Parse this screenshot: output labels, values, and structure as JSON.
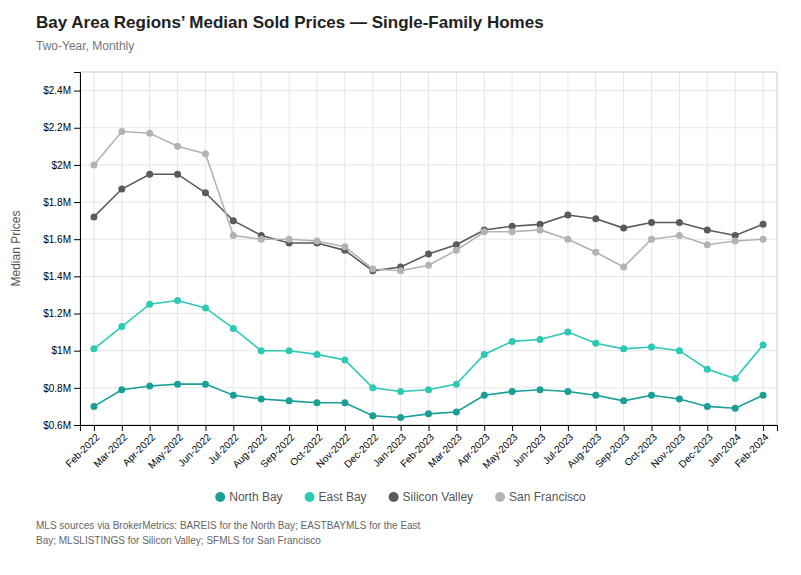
{
  "chart_data": {
    "type": "line",
    "title": "Bay Area Regions’ Median Sold Prices — Single-Family Homes",
    "subtitle": "Two-Year, Monthly",
    "ylabel": "Median Prices",
    "annotations": [
      "MLS sources via BrokerMetrics: BAREIS for the North Bay; EASTBAYMLS for the East",
      "Bay; MLSLISTINGS for Silicon Valley; SFMLS for San Francisco"
    ],
    "categories": [
      "Feb-2022",
      "Mar-2022",
      "Apr-2022",
      "May-2022",
      "Jun-2022",
      "Jul-2022",
      "Aug-2022",
      "Sep-2022",
      "Oct-2022",
      "Nov-2022",
      "Dec-2022",
      "Jan-2023",
      "Feb-2023",
      "Mar-2023",
      "Apr-2023",
      "May-2023",
      "Jun-2023",
      "Jul-2023",
      "Aug-2023",
      "Sep-2023",
      "Oct-2023",
      "Nov-2023",
      "Dec-2023",
      "Jan-2024",
      "Feb-2024"
    ],
    "series": [
      {
        "name": "North Bay",
        "color": "#1a9e96",
        "values": [
          700000,
          790000,
          810000,
          820000,
          820000,
          760000,
          740000,
          730000,
          720000,
          720000,
          650000,
          640000,
          660000,
          670000,
          760000,
          780000,
          790000,
          780000,
          760000,
          730000,
          760000,
          740000,
          700000,
          690000,
          760000
        ]
      },
      {
        "name": "East Bay",
        "color": "#2dc9b5",
        "values": [
          1010000,
          1130000,
          1250000,
          1270000,
          1230000,
          1120000,
          1000000,
          1000000,
          980000,
          950000,
          800000,
          780000,
          790000,
          820000,
          980000,
          1050000,
          1060000,
          1100000,
          1040000,
          1010000,
          1020000,
          1000000,
          900000,
          850000,
          1030000
        ]
      },
      {
        "name": "Silicon Valley",
        "color": "#5a5a5a",
        "values": [
          1720000,
          1870000,
          1950000,
          1950000,
          1850000,
          1700000,
          1620000,
          1580000,
          1580000,
          1540000,
          1430000,
          1450000,
          1520000,
          1570000,
          1650000,
          1670000,
          1680000,
          1730000,
          1710000,
          1660000,
          1690000,
          1690000,
          1650000,
          1620000,
          1680000
        ]
      },
      {
        "name": "San Francisco",
        "color": "#b3b3b3",
        "values": [
          2000000,
          2180000,
          2170000,
          2100000,
          2060000,
          1620000,
          1600000,
          1600000,
          1590000,
          1560000,
          1440000,
          1430000,
          1460000,
          1540000,
          1640000,
          1640000,
          1650000,
          1600000,
          1530000,
          1450000,
          1600000,
          1620000,
          1570000,
          1590000,
          1600000
        ]
      }
    ],
    "ylim": [
      600000,
      2500000
    ],
    "yticks": [
      {
        "value": 600000,
        "label": "$0.6M"
      },
      {
        "value": 800000,
        "label": "$0.8M"
      },
      {
        "value": 1000000,
        "label": "$1M"
      },
      {
        "value": 1200000,
        "label": "$1.2M"
      },
      {
        "value": 1400000,
        "label": "$1.4M"
      },
      {
        "value": 1600000,
        "label": "$1.6M"
      },
      {
        "value": 1800000,
        "label": "$1.8M"
      },
      {
        "value": 2000000,
        "label": "$2M"
      },
      {
        "value": 2200000,
        "label": "$2.2M"
      },
      {
        "value": 2400000,
        "label": "$2.4M"
      }
    ],
    "grid": true,
    "legend": "bottom",
    "marker": "circle"
  }
}
